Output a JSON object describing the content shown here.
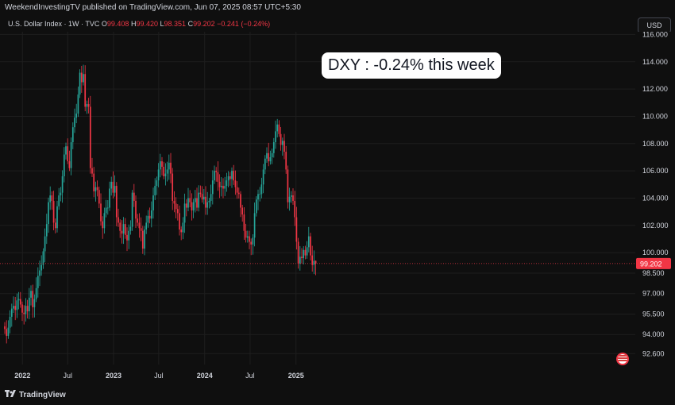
{
  "header": {
    "publisher_line": "WeekendInvestingTV published on TradingView.com, Jun 07, 2025 08:57 UTC+5:30",
    "currency_button": "USD"
  },
  "legend": {
    "symbol": "U.S. Dollar Index · 1W · TVC",
    "o_label": "O",
    "o_value": "99.408",
    "h_label": "H",
    "h_value": "99.420",
    "l_label": "L",
    "l_value": "98.351",
    "c_label": "C",
    "c_value": "99.202",
    "change": "−0.241 (−0.24%)"
  },
  "annotation": "DXY : -0.24% this week",
  "footer": {
    "brand": "TradingView"
  },
  "colors": {
    "up": "#26a69a",
    "down": "#f23645",
    "background": "#0f0f0f",
    "grid": "#1e1e1e",
    "text": "#d1d4dc"
  },
  "chart_data": {
    "type": "candlestick",
    "title": "",
    "ylim": [
      91.8,
      116.2
    ],
    "y_ticks": [
      "116.000",
      "114.000",
      "112.000",
      "110.000",
      "108.000",
      "106.000",
      "104.000",
      "102.000",
      "100.000",
      "98.500",
      "97.000",
      "95.500",
      "94.000",
      "92.600"
    ],
    "y_tick_values": [
      116.0,
      114.0,
      112.0,
      110.0,
      108.0,
      106.0,
      104.0,
      102.0,
      100.0,
      98.5,
      97.0,
      95.5,
      94.0,
      92.6
    ],
    "x_ticks": [
      "2022",
      "Jul",
      "2023",
      "Jul",
      "2024",
      "Jul",
      "2025"
    ],
    "x_tick_dates": [
      "2022-01-01",
      "2022-07-01",
      "2023-01-01",
      "2023-07-01",
      "2024-01-01",
      "2024-07-01",
      "2025-01-01"
    ],
    "first_candle_date": "2021-10-22",
    "interval": "1W",
    "last_price": "99.202",
    "last_price_value": 99.202,
    "closes": [
      94.4,
      93.9,
      94.5,
      95.3,
      95.9,
      96.1,
      95.8,
      96.5,
      96.6,
      96.2,
      95.6,
      95.5,
      96.1,
      95.7,
      96.7,
      97.2,
      96.0,
      96.6,
      97.4,
      98.3,
      98.7,
      99.1,
      100.1,
      101.2,
      102.1,
      103.7,
      104.2,
      103.8,
      102.2,
      101.8,
      103.4,
      104.2,
      104.4,
      105.6,
      107.2,
      107.8,
      106.7,
      106.2,
      108.1,
      109.2,
      109.9,
      110.2,
      111.6,
      113.2,
      112.5,
      113.1,
      110.7,
      110.9,
      110.7,
      106.2,
      105.8,
      104.5,
      104.8,
      104.6,
      103.6,
      102.3,
      101.8,
      102.9,
      103.3,
      103.3,
      104.7,
      105.2,
      104.4,
      104.9,
      102.6,
      102.2,
      101.6,
      101.4,
      102.1,
      101.3,
      100.9,
      101.6,
      101.9,
      104.4,
      103.8,
      102.5,
      102.2,
      101.8,
      101.6,
      100.3,
      101.7,
      102.2,
      102.7,
      102.5,
      103.1,
      104.2,
      104.9,
      105.3,
      106.1,
      106.7,
      106.3,
      105.6,
      105.8,
      106.1,
      106.6,
      105.8,
      103.8,
      103.6,
      103.2,
      102.9,
      101.7,
      101.5,
      102.2,
      103.6,
      103.3,
      104.0,
      103.7,
      103.1,
      103.7,
      104.0,
      103.3,
      104.4,
      104.3,
      103.9,
      104.1,
      103.3,
      103.7,
      103.8,
      104.3,
      105.3,
      106.0,
      105.9,
      105.2,
      104.8,
      104.9,
      104.7,
      104.9,
      105.3,
      105.6,
      105.4,
      106.0,
      105.3,
      104.8,
      104.4,
      104.3,
      103.3,
      102.8,
      101.6,
      101.1,
      101.2,
      100.8,
      100.6,
      101.1,
      102.9,
      103.9,
      104.3,
      104.3,
      105.0,
      106.1,
      106.9,
      107.3,
      106.7,
      107.0,
      107.3,
      108.1,
      108.9,
      109.4,
      108.7,
      107.9,
      108.2,
      107.4,
      106.1,
      103.7,
      104.1,
      104.2,
      103.8,
      102.6,
      100.8,
      99.2,
      99.7,
      99.6,
      100.2,
      99.8,
      100.4,
      101.2,
      99.8,
      99.1,
      99.4,
      99.2
    ],
    "last_candle": {
      "open": 99.408,
      "high": 99.42,
      "low": 98.351,
      "close": 99.202
    }
  }
}
